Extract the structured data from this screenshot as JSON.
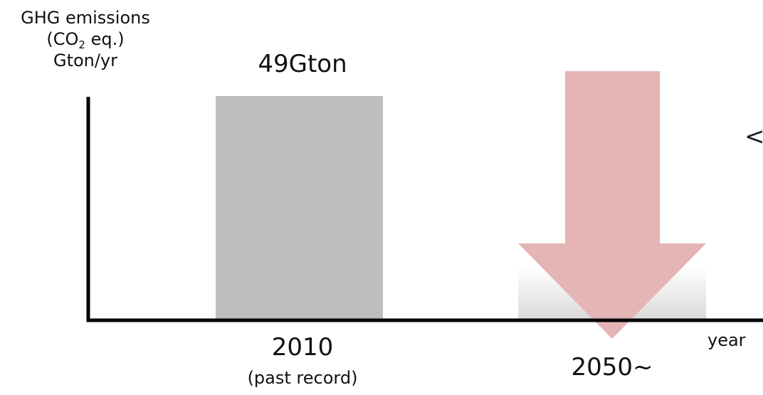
{
  "chart_data": {
    "type": "bar",
    "ylabel_lines": [
      "GHG emissions",
      "(CO",
      "2",
      " eq.)",
      "Gton/yr"
    ],
    "xlabel": "year",
    "categories": [
      "2010",
      "2050~"
    ],
    "category_notes": [
      "(past record)",
      ""
    ],
    "values": [
      49,
      null
    ],
    "data_labels": [
      "49Gton",
      ""
    ],
    "trend": "decrease",
    "grid": false,
    "legend": "none"
  },
  "colors": {
    "bar": "#bebebe",
    "arrow": "#e5b4b4",
    "axis": "#000000",
    "fade_top": "#ffffff",
    "fade_bottom": "#d9d9d9"
  }
}
